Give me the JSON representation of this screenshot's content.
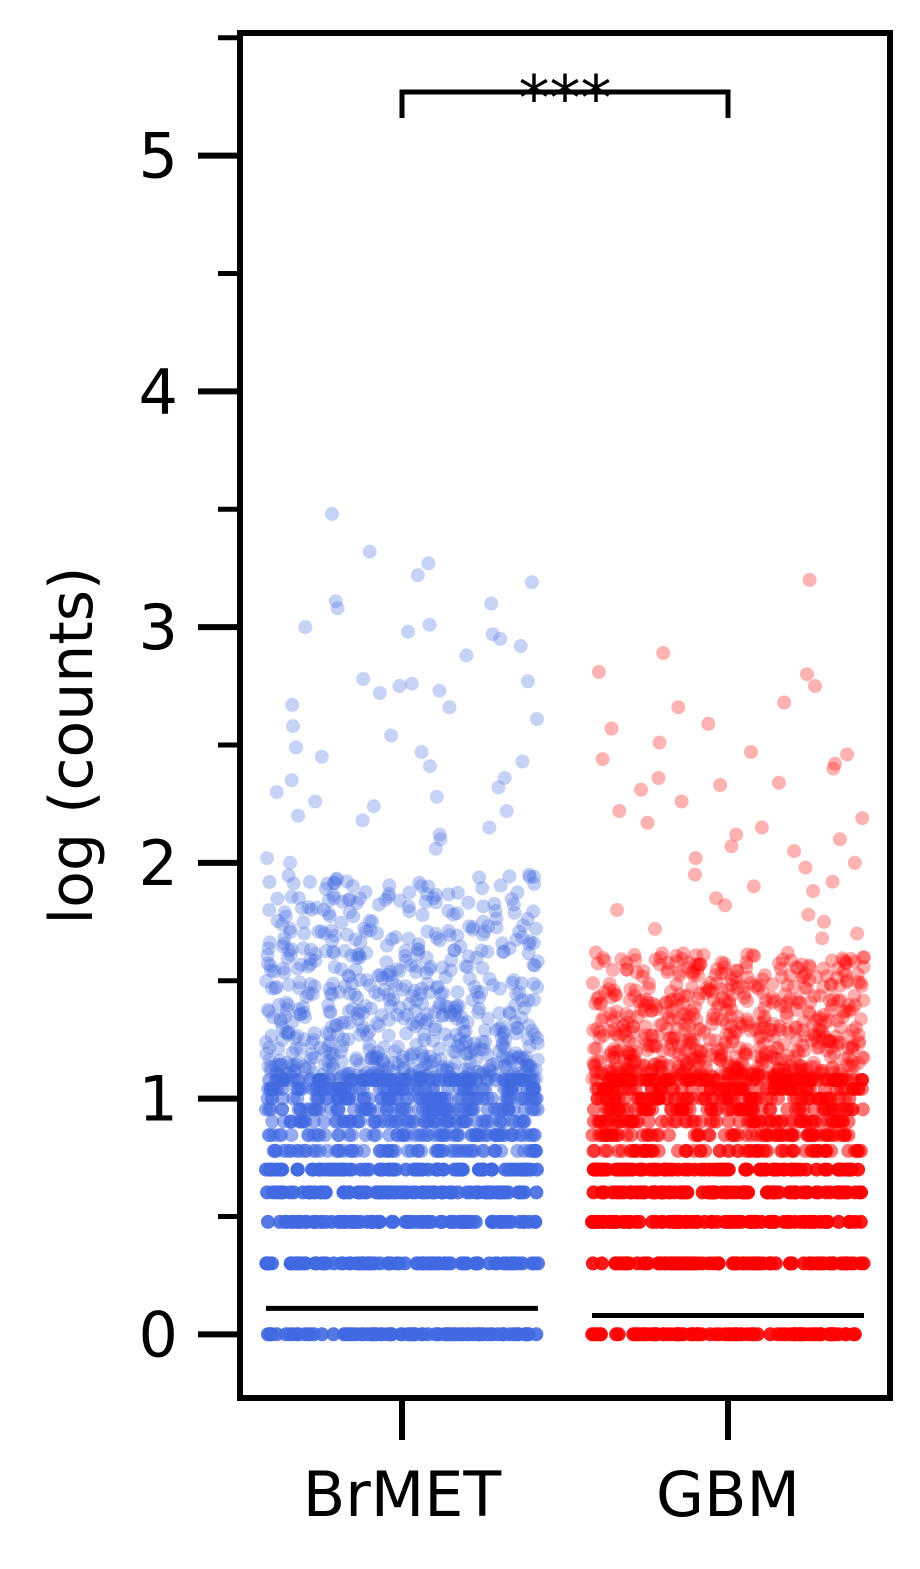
{
  "chart_data": {
    "type": "scatter",
    "subtype": "jitter-strip",
    "ylabel": "log (counts)",
    "xlabel": "",
    "categories": [
      "BrMET",
      "GBM"
    ],
    "ylim": [
      -0.27,
      5.52
    ],
    "yticks": [
      0,
      1,
      2,
      3,
      4,
      5
    ],
    "yminor_ticks": [
      0.5,
      1.5,
      2.5,
      3.5,
      4.5,
      5.5
    ],
    "grid": false,
    "legend": "none",
    "series": [
      {
        "category": "BrMET",
        "color": "#4169E1",
        "median": 0.11,
        "discrete_levels": [
          0,
          0.301,
          0.477,
          0.602,
          0.699,
          0.778,
          0.845,
          0.903,
          0.954,
          1.0,
          1.041,
          1.079
        ],
        "continuous_range": [
          1.08,
          1.95
        ],
        "outliers": [
          3.48,
          3.32,
          3.27,
          3.22,
          3.19,
          3.11,
          3.1,
          3.08,
          3.01,
          3.0,
          2.98,
          2.97,
          2.95,
          2.92,
          2.88,
          2.78,
          2.77,
          2.76,
          2.75,
          2.73,
          2.72,
          2.67,
          2.66,
          2.61,
          2.58,
          2.54,
          2.49,
          2.47,
          2.45,
          2.43,
          2.41,
          2.36,
          2.35,
          2.32,
          2.3,
          2.28,
          2.26,
          2.24,
          2.22,
          2.2,
          2.18,
          2.15,
          2.12,
          2.1,
          2.06,
          2.02,
          2.0
        ]
      },
      {
        "category": "GBM",
        "color": "#FF0000",
        "median": 0.08,
        "discrete_levels": [
          0,
          0.301,
          0.477,
          0.602,
          0.699,
          0.778,
          0.845,
          0.903,
          0.954,
          1.0,
          1.041,
          1.079
        ],
        "continuous_range": [
          1.08,
          1.62
        ],
        "outliers": [
          3.2,
          2.89,
          2.81,
          2.8,
          2.75,
          2.68,
          2.66,
          2.59,
          2.57,
          2.51,
          2.47,
          2.46,
          2.44,
          2.42,
          2.4,
          2.36,
          2.34,
          2.33,
          2.31,
          2.26,
          2.22,
          2.19,
          2.17,
          2.15,
          2.12,
          2.1,
          2.07,
          2.05,
          2.02,
          2.0,
          1.98,
          1.95,
          1.92,
          1.9,
          1.88,
          1.85,
          1.82,
          1.8,
          1.78,
          1.75,
          1.72,
          1.7,
          1.68
        ]
      }
    ],
    "annotation": {
      "label": "***",
      "between": [
        "BrMET",
        "GBM"
      ],
      "y": 5.27
    }
  }
}
